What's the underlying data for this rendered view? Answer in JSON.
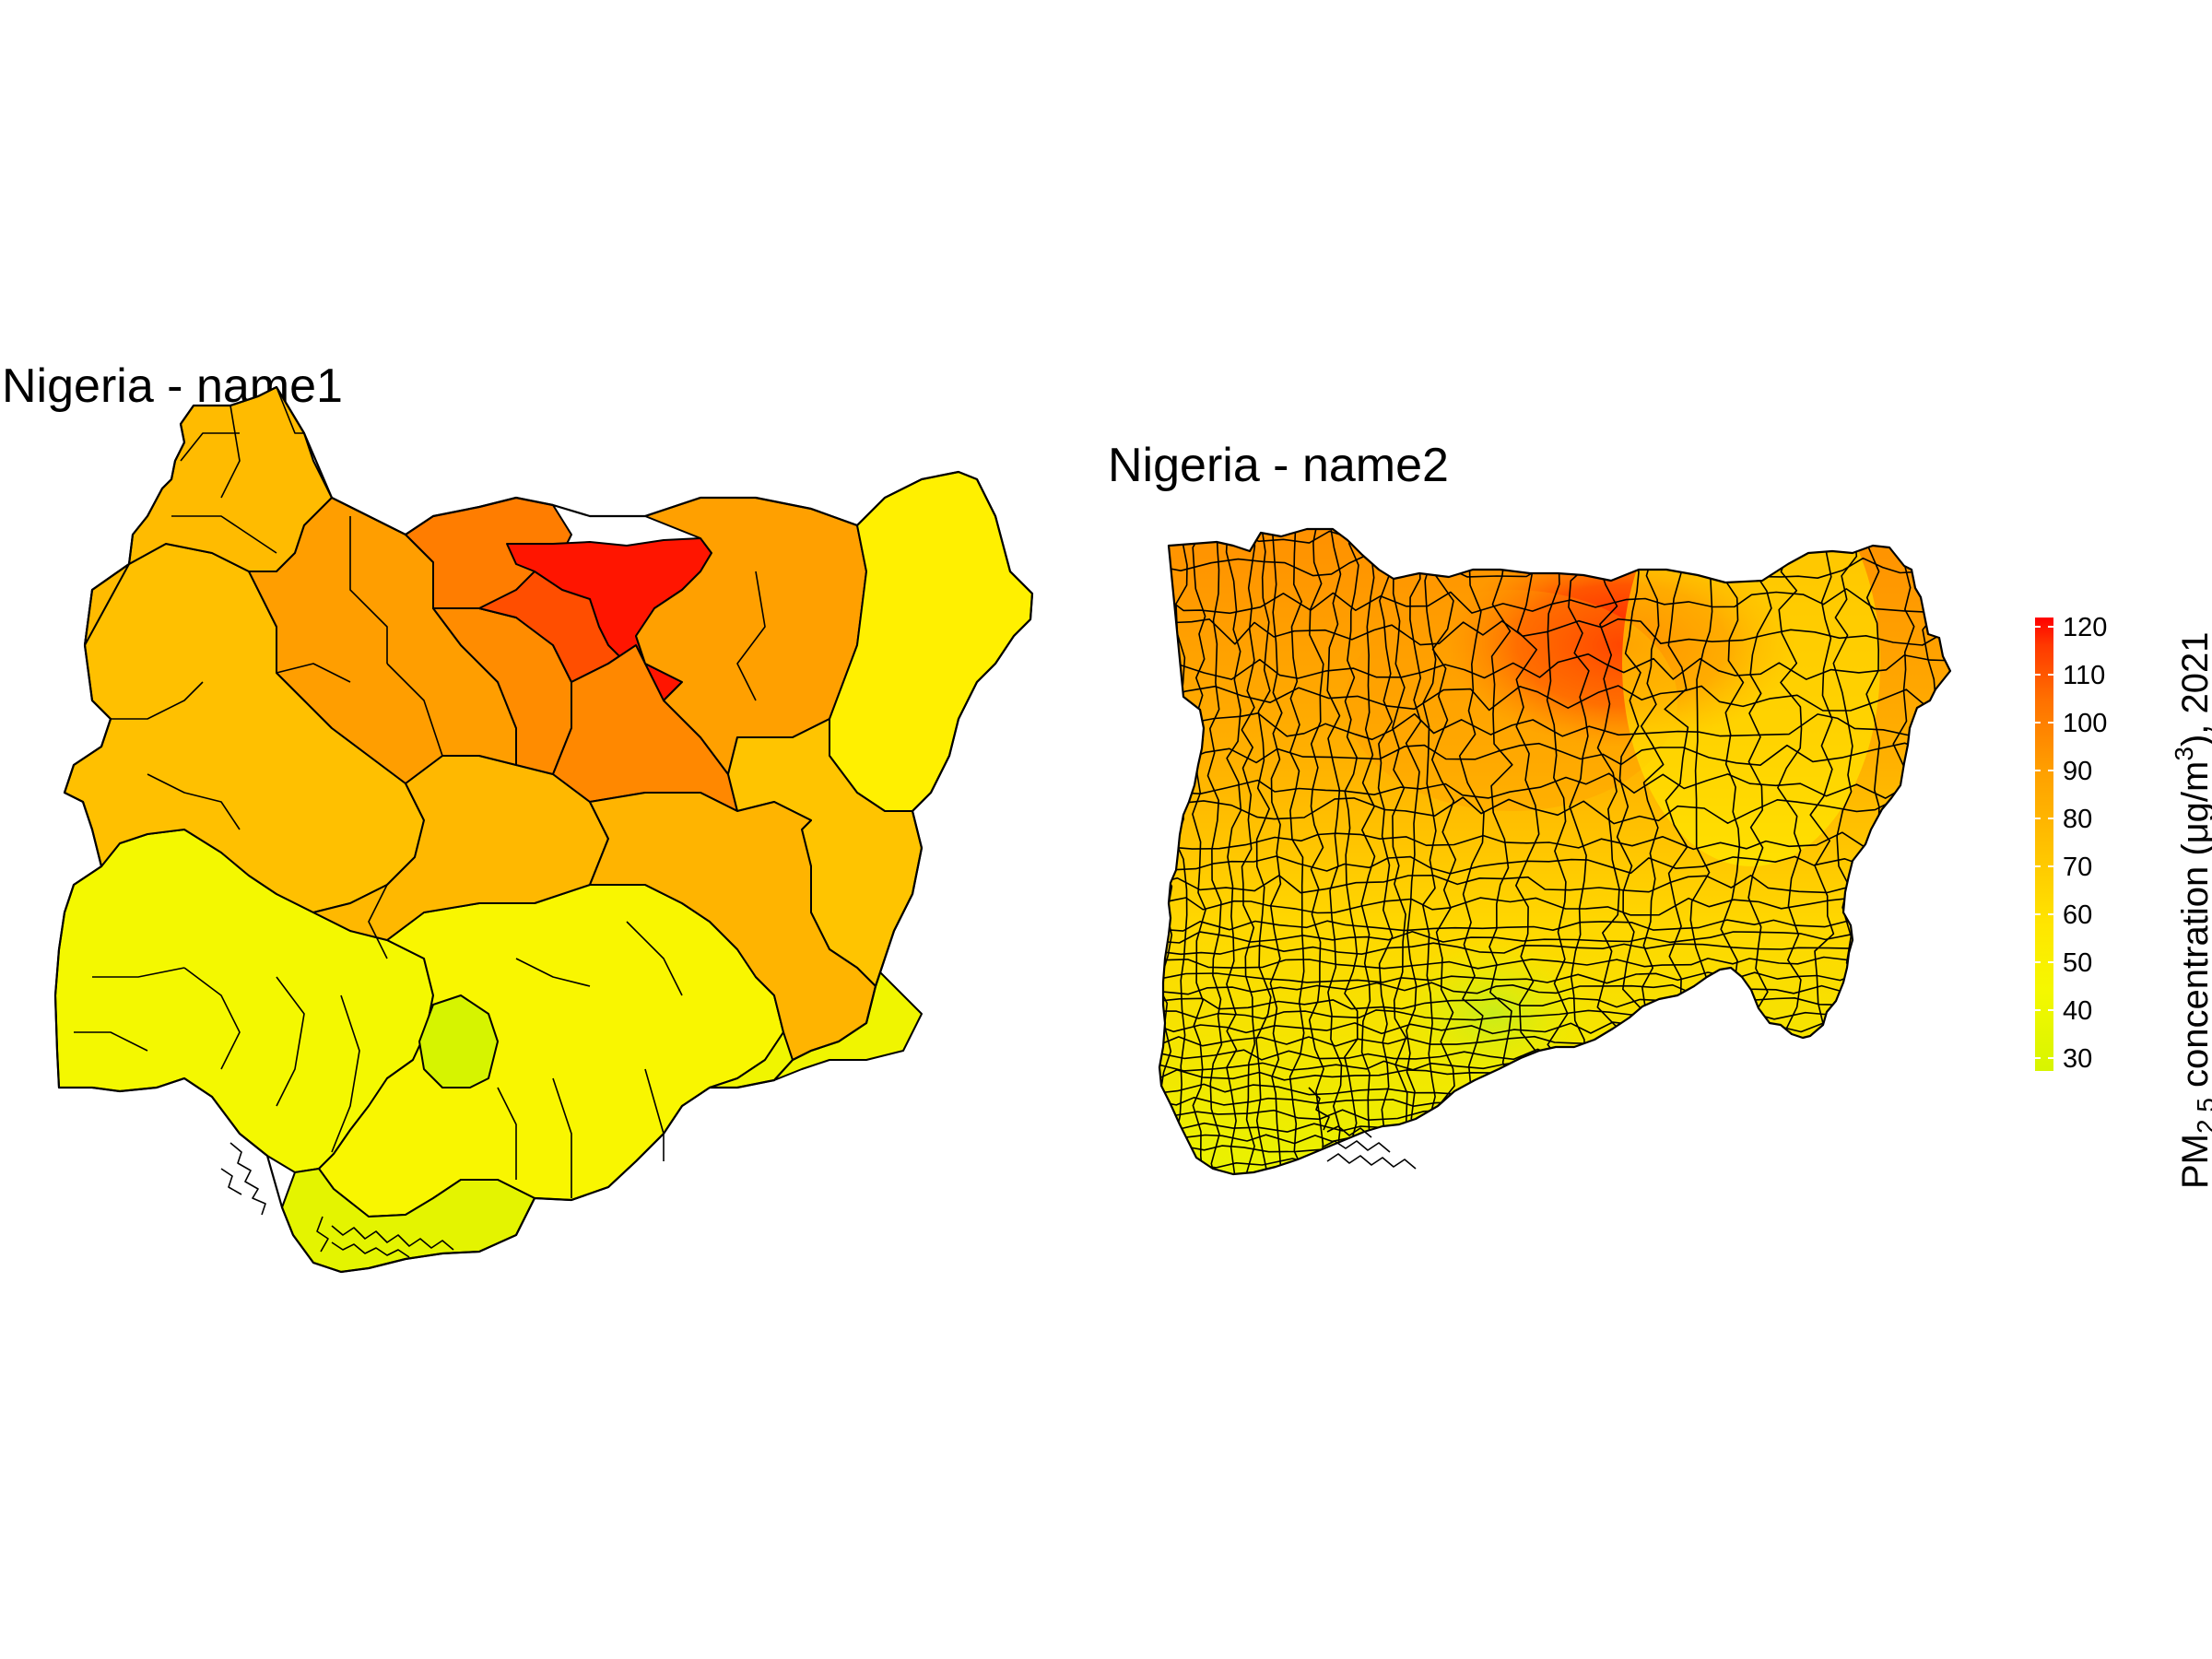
{
  "maps": [
    {
      "title": "Nigeria - name1"
    },
    {
      "title": "Nigeria - name2"
    }
  ],
  "legend": {
    "title_main": "PM",
    "title_subscript": "2.5",
    "title_middle": " concentration (μg/m",
    "title_superscript": "3",
    "title_end": "), 2021",
    "ticks": [
      "120",
      "110",
      "100",
      "90",
      "80",
      "70",
      "60",
      "50",
      "40",
      "30"
    ]
  },
  "colors": {
    "low": "#d4f000",
    "mid": "#fff200",
    "orange": "#ffa500",
    "high": "#ff0000",
    "border": "#000000"
  }
}
